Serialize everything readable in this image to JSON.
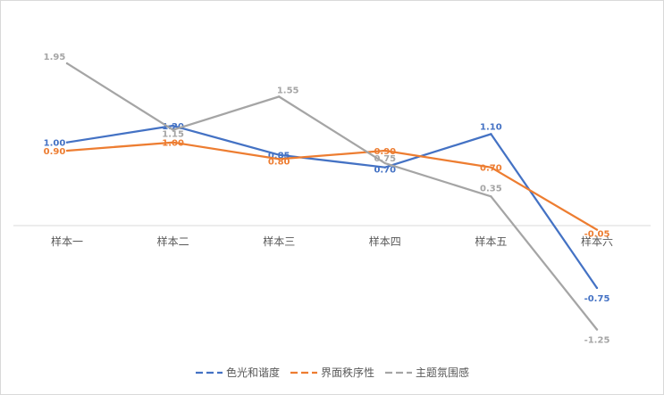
{
  "chart_data": {
    "type": "line",
    "categories": [
      "样本一",
      "样本二",
      "样本三",
      "样本四",
      "样本五",
      "样本六"
    ],
    "series": [
      {
        "name": "色光和谐度",
        "color": "#4472C4",
        "values": [
          1.0,
          1.2,
          0.85,
          0.7,
          1.1,
          -0.75
        ],
        "labels": [
          "1.00",
          "1.20",
          "0.85",
          "0.70",
          "1.10",
          "-0.75"
        ]
      },
      {
        "name": "界面秩序性",
        "color": "#ED7D31",
        "values": [
          0.9,
          1.0,
          0.8,
          0.9,
          0.7,
          -0.05
        ],
        "labels": [
          "0.90",
          "1.00",
          "0.80",
          "0.90",
          "0.70",
          "-0.05"
        ]
      },
      {
        "name": "主题氛围感",
        "color": "#A5A5A5",
        "values": [
          1.95,
          1.15,
          1.55,
          0.75,
          0.35,
          -1.25
        ],
        "labels": [
          "1.95",
          "1.15",
          "1.55",
          "0.75",
          "0.35",
          "-1.25"
        ]
      }
    ],
    "title": "",
    "xlabel": "",
    "ylabel": "",
    "ylim": [
      -1.45,
      2.3
    ],
    "grid": false,
    "legend_position": "bottom"
  }
}
